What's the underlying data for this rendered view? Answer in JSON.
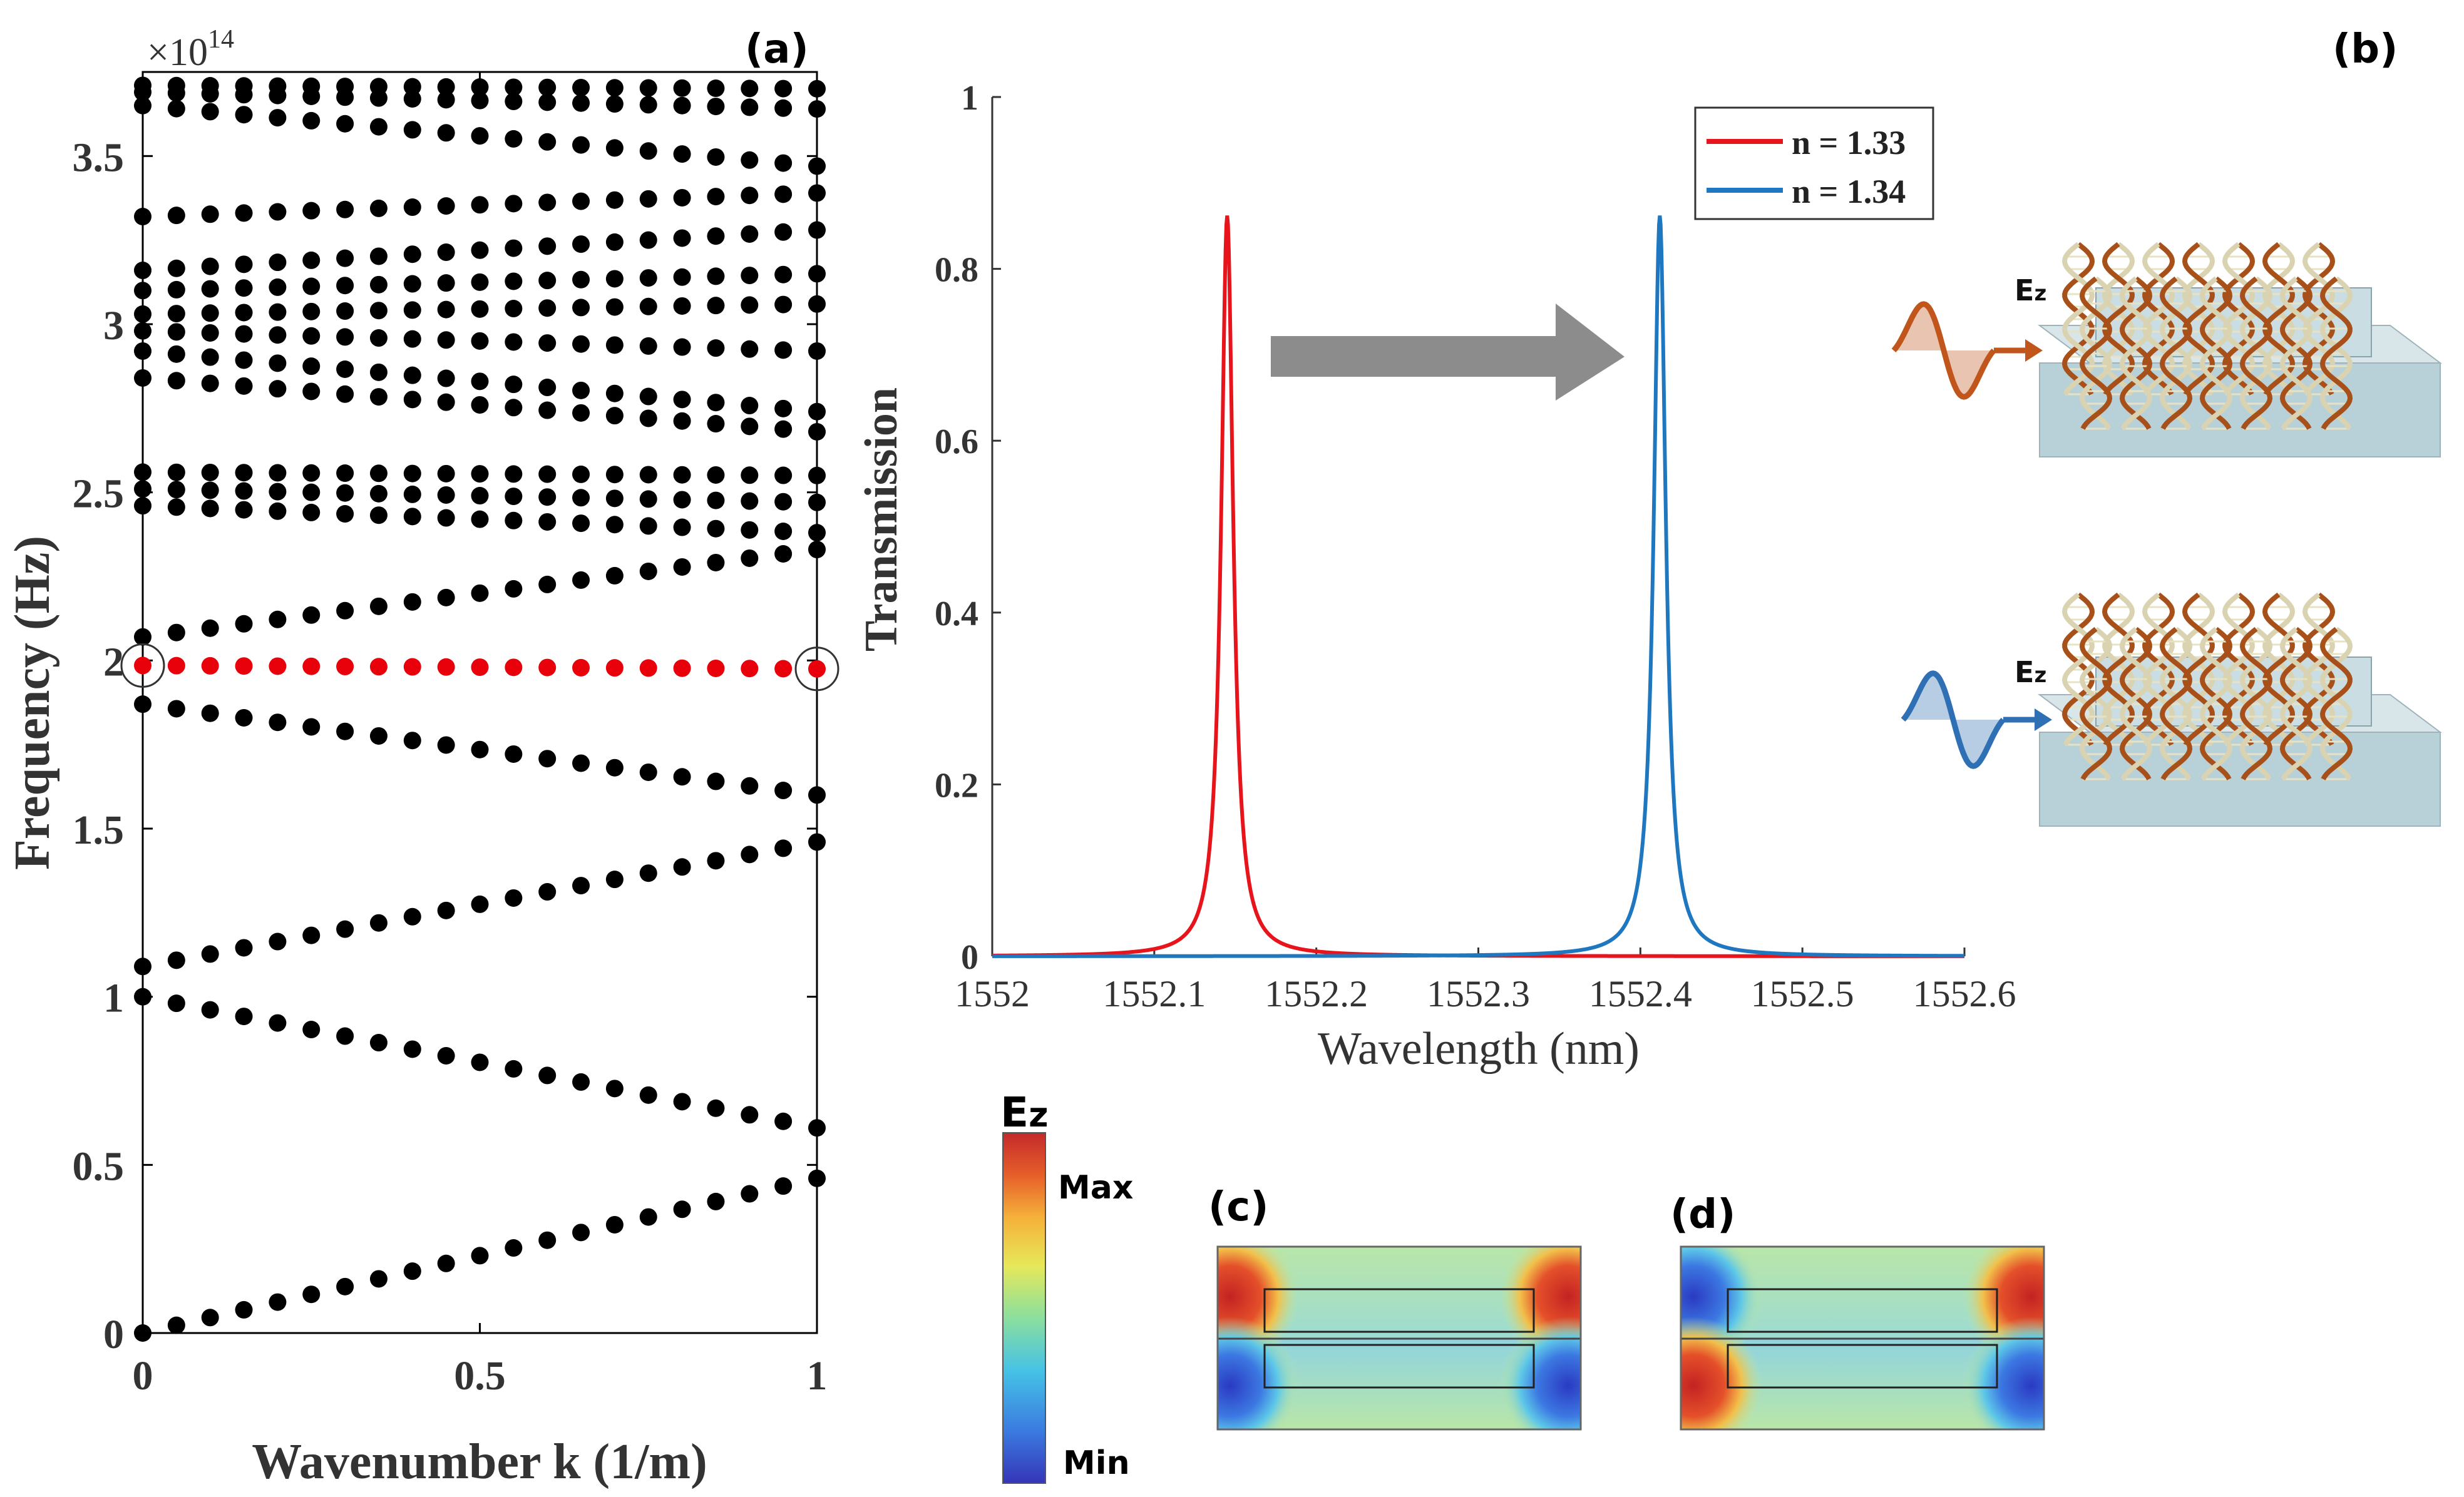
{
  "panel_labels": {
    "a": "(a)",
    "b": "(b)",
    "c": "(c)",
    "d": "(d)"
  },
  "chart_data": [
    {
      "type": "scatter",
      "panel": "(a)",
      "title": "",
      "xlabel": "Wavenumber k (1/m)",
      "ylabel": "Frequency (Hz)",
      "y_scale_label_prefix": "×10",
      "y_scale_exponent": "14",
      "xlim": [
        0,
        1
      ],
      "ylim": [
        0,
        3.75
      ],
      "x_ticks": [
        0,
        0.5,
        1
      ],
      "x_tick_labels": [
        "0",
        "0.5",
        "1"
      ],
      "y_ticks": [
        0,
        0.5,
        1,
        1.5,
        2,
        2.5,
        3,
        3.5
      ],
      "y_tick_labels": [
        "0",
        "0.5",
        "1",
        "1.5",
        "2",
        "2.5",
        "3",
        "3.5"
      ],
      "highlight_color": "#e8000b",
      "point_color": "#000000",
      "bands": [
        {
          "start": 0.0,
          "end": 0.46
        },
        {
          "start": 1.0,
          "end": 0.61
        },
        {
          "start": 1.09,
          "end": 1.46
        },
        {
          "start": 1.87,
          "end": 1.6
        },
        {
          "start": 1.985,
          "end": 1.975,
          "highlight": true
        },
        {
          "start": 2.07,
          "end": 2.33
        },
        {
          "start": 2.46,
          "end": 2.38
        },
        {
          "start": 2.51,
          "end": 2.47
        },
        {
          "start": 2.56,
          "end": 2.55
        },
        {
          "start": 2.84,
          "end": 2.68
        },
        {
          "start": 2.92,
          "end": 2.74
        },
        {
          "start": 2.98,
          "end": 2.92
        },
        {
          "start": 3.03,
          "end": 3.06
        },
        {
          "start": 3.1,
          "end": 3.15
        },
        {
          "start": 3.16,
          "end": 3.28
        },
        {
          "start": 3.32,
          "end": 3.39
        },
        {
          "start": 3.65,
          "end": 3.47
        },
        {
          "start": 3.69,
          "end": 3.64
        },
        {
          "start": 3.71,
          "end": 3.7
        }
      ],
      "circled_points": [
        [
          0,
          1.985
        ],
        [
          1,
          1.975
        ]
      ]
    },
    {
      "type": "line",
      "panel": "(b)",
      "title": "",
      "xlabel": "Wavelength (nm)",
      "ylabel": "Transmission",
      "xlim": [
        1552,
        1552.6
      ],
      "ylim": [
        0,
        1
      ],
      "x_ticks": [
        1552,
        1552.1,
        1552.2,
        1552.3,
        1552.4,
        1552.5,
        1552.6
      ],
      "x_tick_labels": [
        "1552",
        "1552.1",
        "1552.2",
        "1552.3",
        "1552.4",
        "1552.5",
        "1552.6"
      ],
      "y_ticks": [
        0,
        0.2,
        0.4,
        0.6,
        0.8,
        1
      ],
      "y_tick_labels": [
        "0",
        "0.2",
        "0.4",
        "0.6",
        "0.8",
        "1"
      ],
      "legend_position": "top-right",
      "series": [
        {
          "name": "n = 1.33",
          "type": "lorentzian",
          "center": 1552.145,
          "peak": 0.862,
          "hwhm": 0.0045,
          "color": "#e8141b"
        },
        {
          "name": "n = 1.34",
          "type": "lorentzian",
          "center": 1552.412,
          "peak": 0.862,
          "hwhm": 0.0045,
          "color": "#1f77c0"
        }
      ]
    }
  ],
  "illustration": {
    "field_label_main": "E",
    "field_label_sub": "z",
    "wave_colors": [
      "#c0561c",
      "#2f6fb3"
    ],
    "dna_colors": {
      "strand_dark": "#a8501a",
      "strand_light": "#d9d3b2"
    },
    "chip_colors": {
      "top": "#d8e6ea",
      "front": "#b8d0d7",
      "side": "#9dbbc4"
    }
  },
  "colorbar": {
    "title_main": "E",
    "title_sub": "z",
    "max_label": "Max",
    "min_label": "Min",
    "colors": [
      "#3535b8",
      "#3b7be0",
      "#45c2e6",
      "#8fe09a",
      "#e7e85a",
      "#f5b03a",
      "#e65e2a",
      "#c42a2a"
    ]
  },
  "field_maps": [
    {
      "panel": "(c)",
      "top_left": "red",
      "top_right": "red",
      "bottom_left": "blue",
      "bottom_right": "blue"
    },
    {
      "panel": "(d)",
      "top_left": "blue",
      "top_right": "red",
      "bottom_left": "red",
      "bottom_right": "blue"
    }
  ]
}
